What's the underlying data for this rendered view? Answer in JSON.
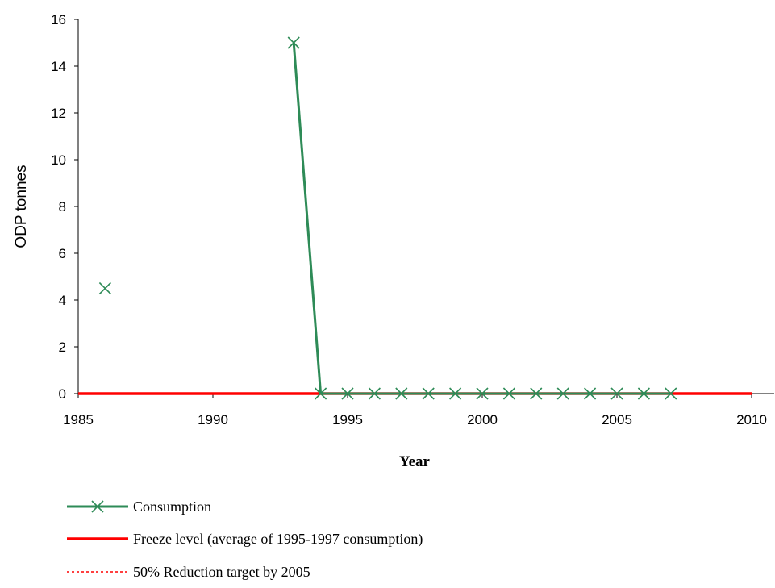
{
  "chart_data": {
    "type": "line",
    "title": "",
    "xlabel": "Year",
    "ylabel": "ODP tonnes",
    "xlim": [
      1985,
      2010
    ],
    "ylim": [
      0,
      16
    ],
    "x_ticks": [
      1985,
      1990,
      1995,
      2000,
      2005,
      2010
    ],
    "y_ticks": [
      0,
      2,
      4,
      6,
      8,
      10,
      12,
      14,
      16
    ],
    "grid": false,
    "legend_position": "bottom",
    "series": [
      {
        "name": "Consumption",
        "color": "#2e8b57",
        "marker": "x",
        "line_style": "solid",
        "points": [
          {
            "x": 1986,
            "y": 4.5
          },
          {
            "x": 1993,
            "y": 15.0
          },
          {
            "x": 1994,
            "y": 0
          },
          {
            "x": 1995,
            "y": 0
          },
          {
            "x": 1996,
            "y": 0
          },
          {
            "x": 1997,
            "y": 0
          },
          {
            "x": 1998,
            "y": 0
          },
          {
            "x": 1999,
            "y": 0
          },
          {
            "x": 2000,
            "y": 0
          },
          {
            "x": 2001,
            "y": 0
          },
          {
            "x": 2002,
            "y": 0
          },
          {
            "x": 2003,
            "y": 0
          },
          {
            "x": 2004,
            "y": 0
          },
          {
            "x": 2005,
            "y": 0
          },
          {
            "x": 2006,
            "y": 0
          },
          {
            "x": 2007,
            "y": 0
          }
        ]
      },
      {
        "name": "Freeze level (average of 1995-1997 consumption)",
        "color": "#ff0000",
        "marker": "none",
        "line_style": "solid",
        "points": [
          {
            "x": 1985,
            "y": 0
          },
          {
            "x": 2010,
            "y": 0
          }
        ]
      },
      {
        "name": "50% Reduction target by 2005",
        "color": "#ff0000",
        "marker": "none",
        "line_style": "dashed",
        "points": [
          {
            "x": 2005,
            "y": 0
          },
          {
            "x": 2010,
            "y": 0
          }
        ]
      }
    ]
  }
}
